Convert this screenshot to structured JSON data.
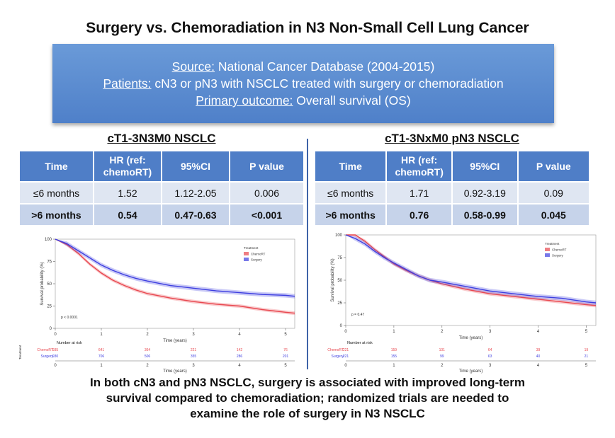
{
  "title": "Surgery vs. Chemoradiation in N3 Non-Small Cell Lung Cancer",
  "banner": {
    "source_label": "Source:",
    "source_text": " National Cancer Database (2004-2015)",
    "patients_label": "Patients:",
    "patients_text": " cN3 or pN3 with NSCLC treated with surgery or chemoradiation",
    "outcome_label": "Primary outcome:",
    "outcome_text": " Overall survival (OS)"
  },
  "panels": [
    {
      "heading": "cT1-3N3M0 NSCLC",
      "columns": [
        "Time",
        "HR (ref: chemoRT)",
        "95%CI",
        "P value"
      ],
      "rows": [
        [
          "≤6 months",
          "1.52",
          "1.12-2.05",
          "0.006"
        ],
        [
          ">6 months",
          "0.54",
          "0.47-0.63",
          "<0.001"
        ]
      ]
    },
    {
      "heading": "cT1-3NxM0 pN3 NSCLC",
      "columns": [
        "Time",
        "HR (ref: chemoRT)",
        "95%CI",
        "P value"
      ],
      "rows": [
        [
          "≤6 months",
          "1.71",
          "0.92-3.19",
          "0.09"
        ],
        [
          ">6 months",
          "0.76",
          "0.58-0.99",
          "0.045"
        ]
      ]
    }
  ],
  "chart_data": [
    {
      "type": "line",
      "xlabel": "Time (years)",
      "ylabel": "Survival probability (%)",
      "xlim": [
        0,
        5.2
      ],
      "ylim": [
        0,
        100
      ],
      "xticks": [
        0,
        1,
        2,
        3,
        4,
        5
      ],
      "yticks": [
        0,
        25,
        50,
        75,
        100
      ],
      "legend_title": "Treatment",
      "legend_position": "top-right",
      "pvalue": "p < 0.0001",
      "series": [
        {
          "name": "ChemoRT",
          "color": "#e8474f",
          "x": [
            0,
            0.25,
            0.5,
            0.75,
            1,
            1.25,
            1.5,
            1.75,
            2,
            2.5,
            3,
            3.5,
            4,
            4.5,
            5,
            5.2
          ],
          "y": [
            100,
            94,
            84,
            72,
            62,
            54,
            48,
            43,
            39,
            34,
            30,
            27,
            25,
            21,
            18,
            17
          ]
        },
        {
          "name": "Surgery",
          "color": "#3d3ee0",
          "x": [
            0,
            0.25,
            0.5,
            0.75,
            1,
            1.25,
            1.5,
            1.75,
            2,
            2.5,
            3,
            3.5,
            4,
            4.5,
            5,
            5.2
          ],
          "y": [
            100,
            95,
            87,
            79,
            71,
            65,
            60,
            56,
            53,
            48,
            45,
            42,
            40,
            38,
            37,
            36
          ]
        }
      ],
      "risk_table": {
        "title": "Number at risk",
        "axis_label": "Treatment",
        "rows": [
          {
            "name": "ChemoRT",
            "color": "#e8474f",
            "values": [
              "935",
              "641",
              "364",
              "221",
              "142",
              "76"
            ]
          },
          {
            "name": "Surgery",
            "color": "#3d3ee0",
            "values": [
              "930",
              "706",
              "506",
              "355",
              "286",
              "201"
            ]
          }
        ],
        "xlabel": "Time (years)"
      }
    },
    {
      "type": "line",
      "xlabel": "Time (years)",
      "ylabel": "Survival probability (%)",
      "xlim": [
        0,
        5.2
      ],
      "ylim": [
        0,
        100
      ],
      "xticks": [
        0,
        1,
        2,
        3,
        4,
        5
      ],
      "yticks": [
        0,
        25,
        50,
        75,
        100
      ],
      "legend_title": "Treatment",
      "legend_position": "top-right",
      "pvalue": "p = 0.47",
      "series": [
        {
          "name": "ChemoRT",
          "color": "#e8474f",
          "x": [
            0,
            0.2,
            0.4,
            0.6,
            0.8,
            1,
            1.25,
            1.5,
            1.75,
            2,
            2.5,
            3,
            3.5,
            4,
            4.5,
            5,
            5.2
          ],
          "y": [
            100,
            100,
            93,
            84,
            76,
            68,
            61,
            55,
            50,
            46,
            40,
            35,
            32,
            29,
            26,
            23,
            22
          ]
        },
        {
          "name": "Surgery",
          "color": "#3d3ee0",
          "x": [
            0,
            0.2,
            0.4,
            0.6,
            0.8,
            1,
            1.25,
            1.5,
            1.75,
            2,
            2.5,
            3,
            3.5,
            4,
            4.5,
            5,
            5.2
          ],
          "y": [
            100,
            96,
            90,
            82,
            75,
            69,
            62,
            55,
            50,
            48,
            43,
            38,
            35,
            32,
            30,
            26,
            25
          ]
        }
      ],
      "risk_table": {
        "title": "Number at risk",
        "axis_label": "Treatment",
        "rows": [
          {
            "name": "ChemoRT",
            "color": "#e8474f",
            "values": [
              "221",
              "159",
              "101",
              "64",
              "39",
              "19"
            ]
          },
          {
            "name": "Surgery",
            "color": "#3d3ee0",
            "values": [
              "221",
              "155",
              "99",
              "63",
              "40",
              "21"
            ]
          }
        ],
        "xlabel": "Time (years)"
      }
    }
  ],
  "conclusion": {
    "line1": "In both cN3 and pN3 NSCLC, surgery is associated with improved long-term",
    "line2": "survival compared to chemoradiation; randomized trials are needed to",
    "line3": "examine the role of surgery in N3 NSCLC"
  }
}
